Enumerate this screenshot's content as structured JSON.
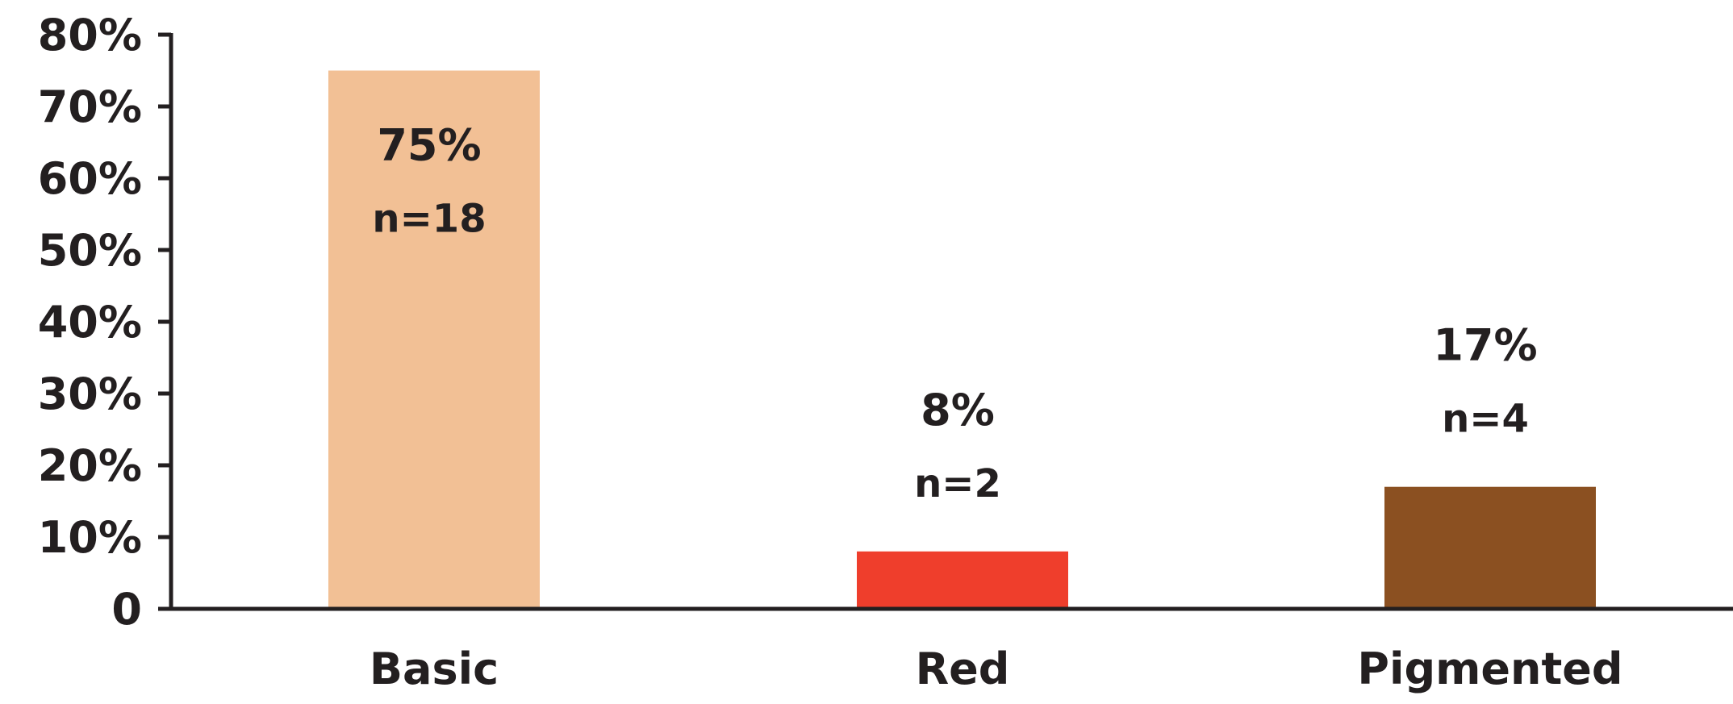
{
  "chart_data": {
    "type": "bar",
    "title": "",
    "xlabel": "",
    "ylabel": "",
    "categories": [
      "Basic",
      "Red",
      "Pigmented"
    ],
    "values": [
      75,
      8,
      17
    ],
    "value_labels": [
      "75%",
      "8%",
      "17%"
    ],
    "counts": [
      "n=18",
      "n=2",
      "n=4"
    ],
    "colors": [
      "#f2c095",
      "#ef3e2c",
      "#8b5021"
    ],
    "ylim": [
      0,
      80
    ],
    "yticks": [
      0,
      10,
      20,
      30,
      40,
      50,
      60,
      70,
      80
    ],
    "ytick_labels": [
      "0",
      "10%",
      "20%",
      "30%",
      "40%",
      "50%",
      "60%",
      "70%",
      "80%"
    ],
    "grid": false,
    "legend": "none"
  }
}
